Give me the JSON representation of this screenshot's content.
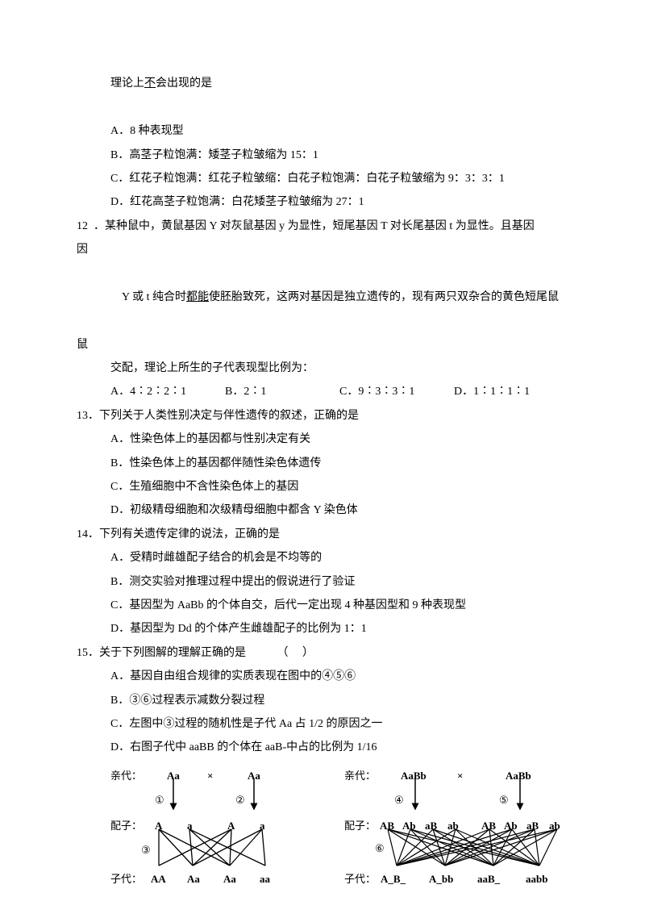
{
  "intro": {
    "stem_cont": "理论上",
    "stem_cont_u": "不",
    "stem_cont2": "会出现的是",
    "a": "A．8 种表现型",
    "b": "B．高茎子粒饱满：矮茎子粒皱缩为 15：1",
    "c": "C．红花子粒饱满：红花子粒皱缩：白花子粒饱满：白花子粒皱缩为 9：3：3：1",
    "d": "D．红花高茎子粒饱满：白花矮茎子粒皱缩为 27：1"
  },
  "q12": {
    "stem1": "12  ．某种鼠中，黄鼠基因 Y 对灰鼠基因 y 为显性，短尾基因 T 对长尾基因 t 为显性。且基因",
    "stem2_a": "Y 或 t 纯合时",
    "stem2_u": "都能",
    "stem2_b": "使胚胎致死，这两对基因是独立遗传的，现有两只双杂合的黄色短尾鼠",
    "stem3": "交配，理论上所生的子代表现型比例为：",
    "a": "A．4∶2∶2∶1",
    "b": "B．2∶1",
    "c": "C．9∶3∶3∶1",
    "d": "D．1∶1∶1∶1"
  },
  "q13": {
    "stem": "13．下列关于人类性别决定与伴性遗传的叙述，正确的是",
    "a": "A．性染色体上的基因都与性别决定有关",
    "b": "B．性染色体上的基因都伴随性染色体遗传",
    "c": "C．生殖细胞中不含性染色体上的基因",
    "d": "D．初级精母细胞和次级精母细胞中都含 Y 染色体"
  },
  "q14": {
    "stem": "14．下列有关遗传定律的说法，正确的是",
    "a": "A．受精时雌雄配子结合的机会是不均等的",
    "b": "B．测交实验对推理过程中提出的假说进行了验证",
    "c": "C．基因型为 AaBb 的个体自交，后代一定出现 4 种基因型和 9 种表现型",
    "d": "D．基因型为 Dd 的个体产生雌雄配子的比例为 1：1"
  },
  "q15": {
    "stem": "15．关于下列图解的理解正确的是           （     ）",
    "a": "A．基因自由组合规律的实质表现在图中的④⑤⑥",
    "b": "B．③⑥过程表示减数分裂过程",
    "c": "C．左图中③过程的随机性是子代 Aa 占 1/2 的原因之一",
    "d": "D．右图子代中 aaBB 的个体在 aaB-中占的比例为 1/16"
  },
  "diag": {
    "parent": "亲代：",
    "gamete": "配子：",
    "offspring": "子代：",
    "mult": "×",
    "left": {
      "p1": "Aa",
      "p2": "Aa",
      "n1": "①",
      "n2": "②",
      "n3": "③",
      "g": [
        "A",
        "a",
        "A",
        "a"
      ],
      "off": [
        "AA",
        "Aa",
        "Aa",
        "aa"
      ]
    },
    "right": {
      "p1": "AaBb",
      "p2": "AaBb",
      "n4": "④",
      "n5": "⑤",
      "n6": "⑥",
      "g": [
        "AB",
        "Ab",
        "aB",
        "ab",
        "AB",
        "Ab",
        "aB",
        "ab"
      ],
      "off": [
        "A_B_",
        "A_bb",
        "aaB_",
        "aabb"
      ]
    },
    "colors": {
      "line": "#000000"
    }
  }
}
